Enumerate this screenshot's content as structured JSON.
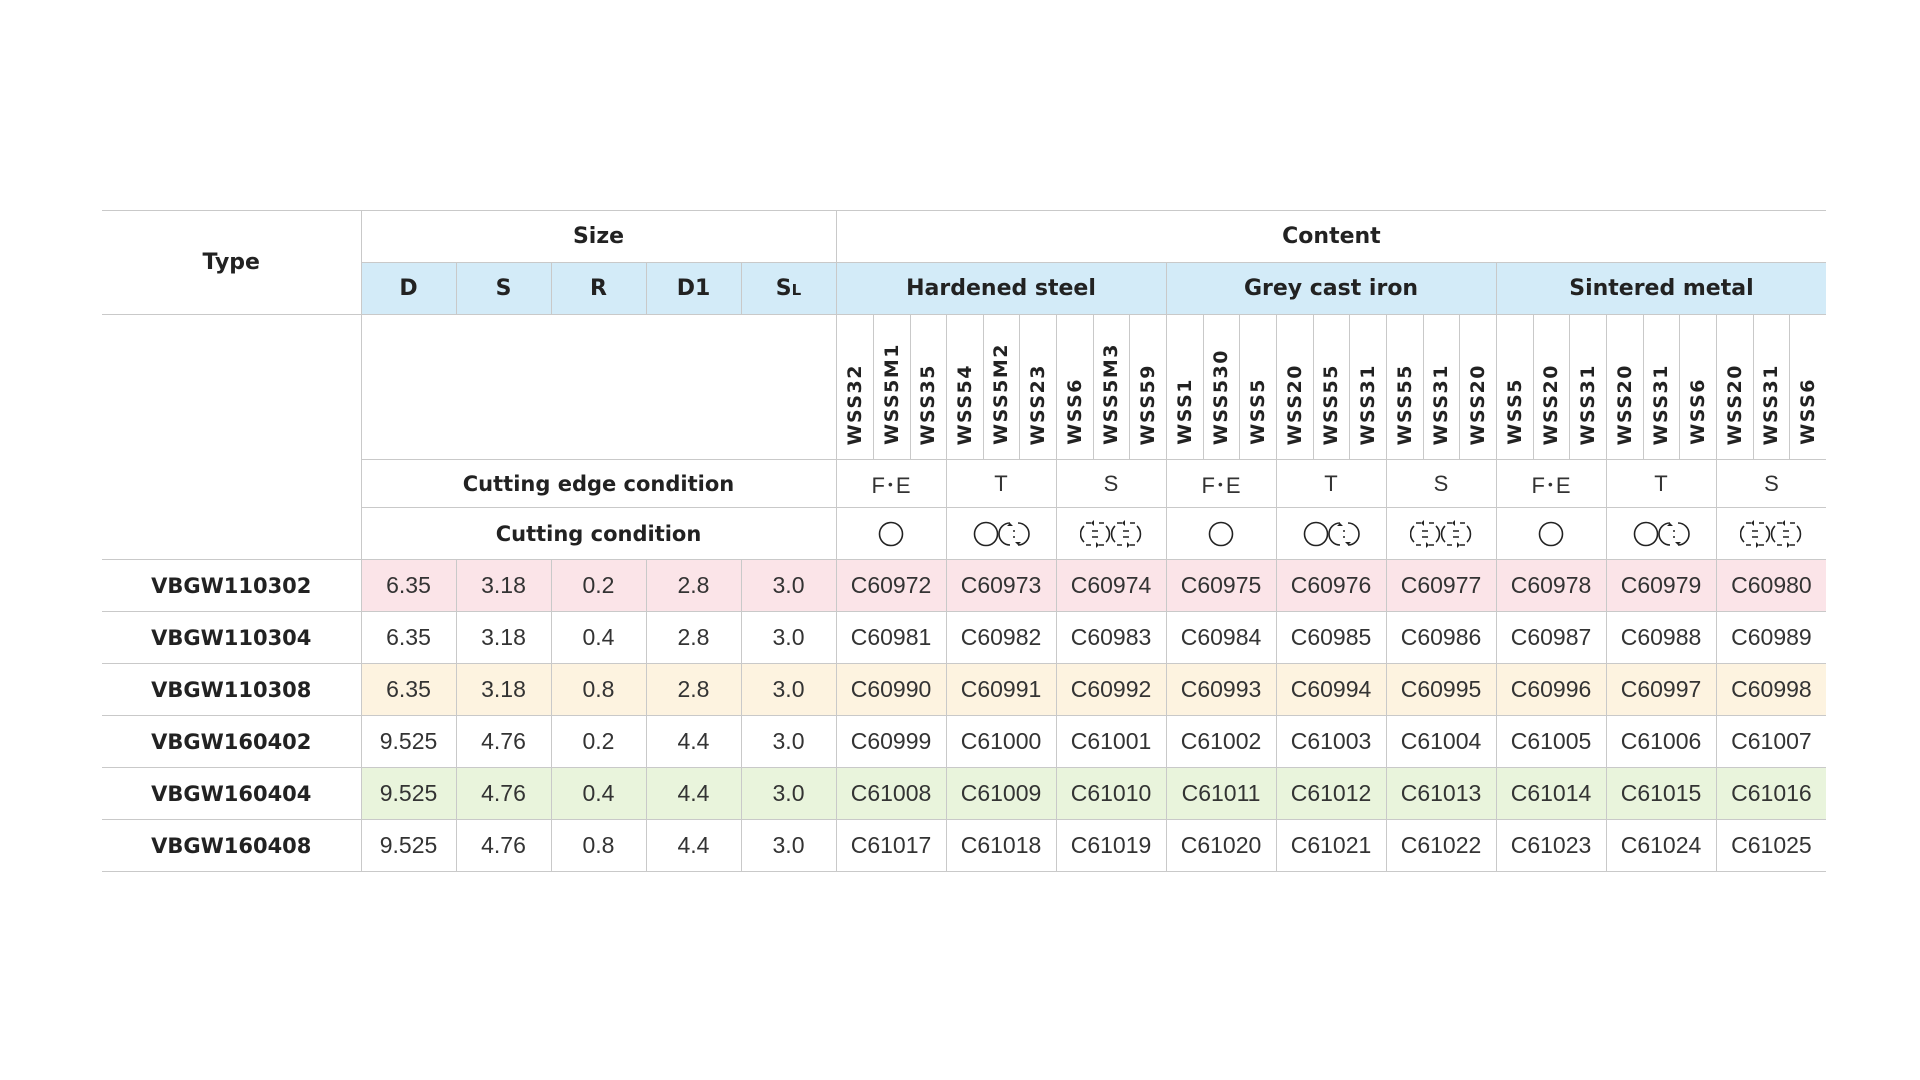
{
  "headers": {
    "type": "Type",
    "size": "Size",
    "content": "Content",
    "size_cols": {
      "d": "D",
      "s": "S",
      "r": "R",
      "d1": "D1",
      "sl_main": "S",
      "sl_sub": "L"
    },
    "materials": [
      "Hardened steel",
      "Grey cast iron",
      "Sintered metal"
    ],
    "cutting_edge_condition": "Cutting edge condition",
    "cutting_condition": "Cutting condition"
  },
  "grades": [
    [
      "WSS32",
      "WSS5M1",
      "WSS35"
    ],
    [
      "WSS54",
      "WSS5M2",
      "WSS23"
    ],
    [
      "WSS6",
      "WSS5M3",
      "WSS59"
    ],
    [
      "WSS1",
      "WSS530",
      "WSS5"
    ],
    [
      "WSS20",
      "WSS55",
      "WSS31"
    ],
    [
      "WSS55",
      "WSS31",
      "WSS20"
    ],
    [
      "WSS5",
      "WSS20",
      "WSS31"
    ],
    [
      "WSS20",
      "WSS31",
      "WSS6"
    ],
    [
      "WSS20",
      "WSS31",
      "WSS6"
    ]
  ],
  "edge_conditions": [
    "F･E",
    "T",
    "S",
    "F･E",
    "T",
    "S",
    "F･E",
    "T",
    "S"
  ],
  "cutting_condition_icons": [
    "continuous-cut-icon",
    "light-interrupted-cut-icon",
    "heavy-interrupted-cut-icon",
    "continuous-cut-icon",
    "light-interrupted-cut-icon",
    "heavy-interrupted-cut-icon",
    "continuous-cut-icon",
    "light-interrupted-cut-icon",
    "heavy-interrupted-cut-icon"
  ],
  "rows": [
    {
      "type": "VBGW110302",
      "d": "6.35",
      "s": "3.18",
      "r": "0.2",
      "d1": "2.8",
      "sl": "3.0",
      "codes": [
        "C60972",
        "C60973",
        "C60974",
        "C60975",
        "C60976",
        "C60977",
        "C60978",
        "C60979",
        "C60980"
      ],
      "bg": "#fbe4e8"
    },
    {
      "type": "VBGW110304",
      "d": "6.35",
      "s": "3.18",
      "r": "0.4",
      "d1": "2.8",
      "sl": "3.0",
      "codes": [
        "C60981",
        "C60982",
        "C60983",
        "C60984",
        "C60985",
        "C60986",
        "C60987",
        "C60988",
        "C60989"
      ],
      "bg": ""
    },
    {
      "type": "VBGW110308",
      "d": "6.35",
      "s": "3.18",
      "r": "0.8",
      "d1": "2.8",
      "sl": "3.0",
      "codes": [
        "C60990",
        "C60991",
        "C60992",
        "C60993",
        "C60994",
        "C60995",
        "C60996",
        "C60997",
        "C60998"
      ],
      "bg": "#fdf3e0"
    },
    {
      "type": "VBGW160402",
      "d": "9.525",
      "s": "4.76",
      "r": "0.2",
      "d1": "4.4",
      "sl": "3.0",
      "codes": [
        "C60999",
        "C61000",
        "C61001",
        "C61002",
        "C61003",
        "C61004",
        "C61005",
        "C61006",
        "C61007"
      ],
      "bg": ""
    },
    {
      "type": "VBGW160404",
      "d": "9.525",
      "s": "4.76",
      "r": "0.4",
      "d1": "4.4",
      "sl": "3.0",
      "codes": [
        "C61008",
        "C61009",
        "C61010",
        "C61011",
        "C61012",
        "C61013",
        "C61014",
        "C61015",
        "C61016"
      ],
      "bg": "#e9f4dc"
    },
    {
      "type": "VBGW160408",
      "d": "9.525",
      "s": "4.76",
      "r": "0.8",
      "d1": "4.4",
      "sl": "3.0",
      "codes": [
        "C61017",
        "C61018",
        "C61019",
        "C61020",
        "C61021",
        "C61022",
        "C61023",
        "C61024",
        "C61025"
      ],
      "bg": ""
    }
  ],
  "colors": {
    "header_blue": "#d3ebf8",
    "grid": "#c9c9c9"
  }
}
